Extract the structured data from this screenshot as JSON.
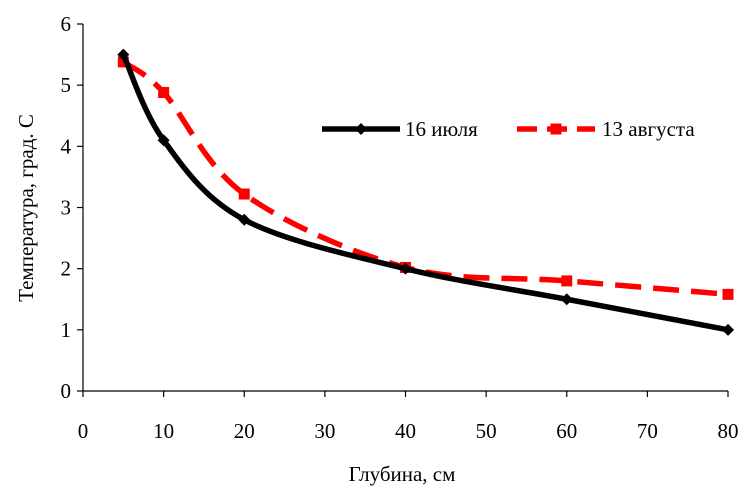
{
  "chart_data": {
    "type": "line",
    "title": "",
    "xlabel": "Глубина, см",
    "ylabel": "Температура, град. С",
    "xlim": [
      0,
      80
    ],
    "ylim": [
      0,
      6
    ],
    "x_ticks": [
      0,
      10,
      20,
      30,
      40,
      50,
      60,
      70,
      80
    ],
    "y_ticks": [
      0,
      1,
      2,
      3,
      4,
      5,
      6
    ],
    "grid": false,
    "legend_position": "top-right",
    "series": [
      {
        "name": "16 июля",
        "color": "#000000",
        "line_style": "solid",
        "marker": "diamond",
        "x": [
          5,
          10,
          20,
          40,
          60,
          80
        ],
        "y": [
          5.5,
          4.1,
          2.8,
          2.0,
          1.5,
          1.0
        ]
      },
      {
        "name": "13 августа",
        "color": "#ff0000",
        "line_style": "dashed",
        "marker": "square",
        "x": [
          5,
          10,
          20,
          40,
          60,
          80
        ],
        "y": [
          5.38,
          4.88,
          3.22,
          2.02,
          1.8,
          1.58
        ]
      }
    ]
  }
}
